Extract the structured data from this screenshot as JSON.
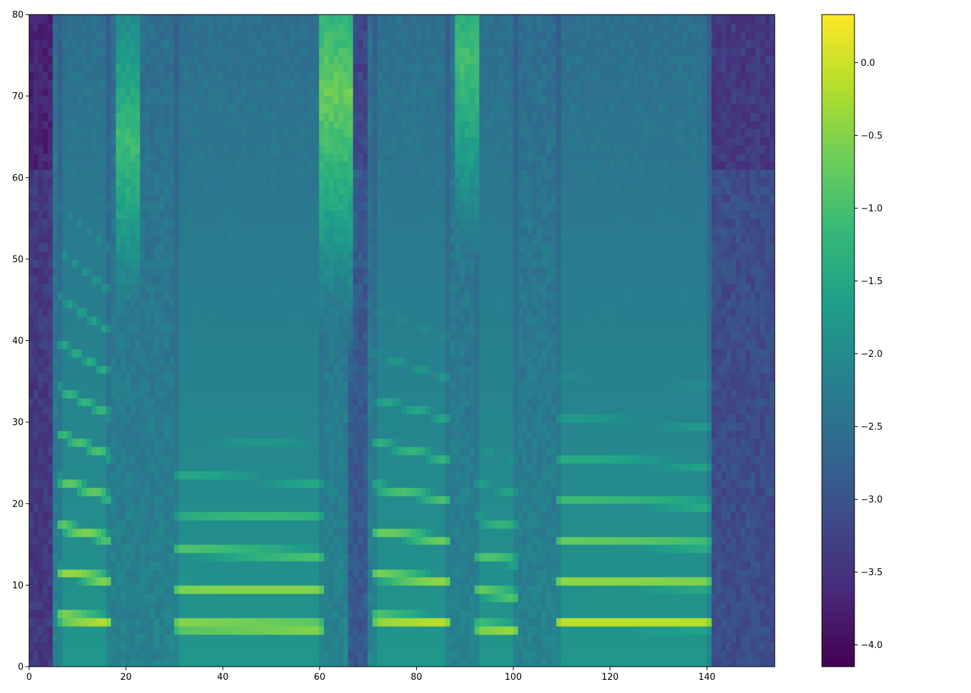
{
  "chart_data": {
    "type": "heatmap",
    "title": "",
    "xlabel": "",
    "ylabel": "",
    "xlim": [
      0,
      154
    ],
    "ylim": [
      0,
      80
    ],
    "n_frames": 154,
    "n_bins": 80,
    "colormap": "viridis",
    "value_range": [
      -4.15,
      0.33
    ],
    "x_ticks": [
      0,
      20,
      40,
      60,
      80,
      100,
      120,
      140
    ],
    "x_tick_labels": [
      "0",
      "20",
      "40",
      "60",
      "80",
      "100",
      "120",
      "140"
    ],
    "y_ticks": [
      0,
      10,
      20,
      30,
      40,
      50,
      60,
      70,
      80
    ],
    "y_tick_labels": [
      "0",
      "10",
      "20",
      "30",
      "40",
      "50",
      "60",
      "70",
      "80"
    ],
    "colorbar": {
      "ticks": [
        0.0,
        -0.5,
        -1.0,
        -1.5,
        -2.0,
        -2.5,
        -3.0,
        -3.5,
        -4.0
      ],
      "tick_labels": [
        "0.0",
        "−0.5",
        "−1.0",
        "−1.5",
        "−2.0",
        "−2.5",
        "−3.0",
        "−3.5",
        "−4.0"
      ],
      "range": [
        -4.15,
        0.33
      ]
    },
    "voiced_segments": [
      {
        "start": 6,
        "end": 17,
        "f0_bin": 5.6,
        "level": 0.05,
        "decay": 0.02,
        "slope": -0.1
      },
      {
        "start": 30,
        "end": 61,
        "f0_bin": 4.6,
        "level": 0.15,
        "decay": 0.045,
        "slope": -0.04
      },
      {
        "start": 71,
        "end": 87,
        "f0_bin": 5.4,
        "level": 0.1,
        "decay": 0.03,
        "slope": -0.08
      },
      {
        "start": 92,
        "end": 101,
        "f0_bin": 4.4,
        "level": 0.0,
        "decay": 0.045,
        "slope": -0.06
      },
      {
        "start": 109,
        "end": 141,
        "f0_bin": 5.0,
        "level": 0.2,
        "decay": 0.04,
        "slope": -0.03
      }
    ],
    "fricative_segments": [
      {
        "start": 60,
        "end": 67,
        "center_bin": 70,
        "level": -0.7
      },
      {
        "start": 88,
        "end": 93,
        "center_bin": 74,
        "level": -1.0
      },
      {
        "start": 18,
        "end": 23,
        "center_bin": 64,
        "level": -1.1
      }
    ],
    "silence_segments": [
      {
        "start": 0,
        "end": 5,
        "level": -3.4
      },
      {
        "start": 66,
        "end": 70,
        "level": -2.9
      },
      {
        "start": 141,
        "end": 154,
        "level": -3.1
      }
    ]
  }
}
